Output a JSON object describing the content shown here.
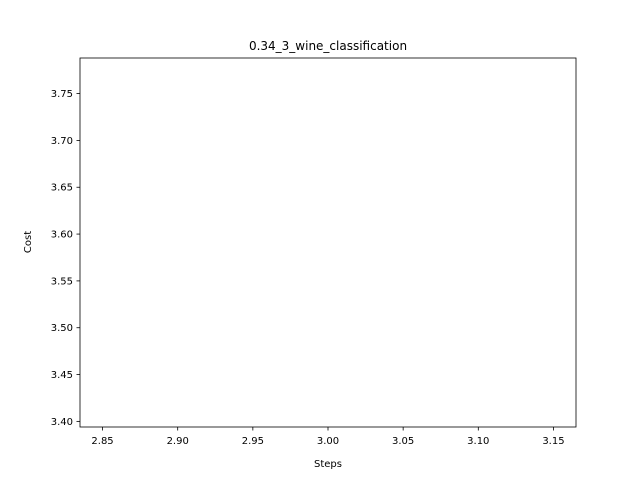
{
  "chart_data": {
    "type": "line",
    "title": "0.34_3_wine_classification",
    "xlabel": "Steps",
    "ylabel": "Cost",
    "xlim": [
      2.835,
      3.165
    ],
    "ylim": [
      3.394,
      3.788
    ],
    "x_ticks": [
      2.85,
      2.9,
      2.95,
      3.0,
      3.05,
      3.1,
      3.15
    ],
    "y_ticks": [
      3.4,
      3.45,
      3.5,
      3.55,
      3.6,
      3.65,
      3.7,
      3.75
    ],
    "x_tick_labels": [
      "2.85",
      "2.90",
      "2.95",
      "3.00",
      "3.05",
      "3.10",
      "3.15"
    ],
    "y_tick_labels": [
      "3.40",
      "3.45",
      "3.50",
      "3.55",
      "3.60",
      "3.65",
      "3.70",
      "3.75"
    ],
    "series": [],
    "grid": false,
    "legend": "none",
    "colors": {
      "axes": "#000000",
      "background": "#ffffff"
    }
  }
}
